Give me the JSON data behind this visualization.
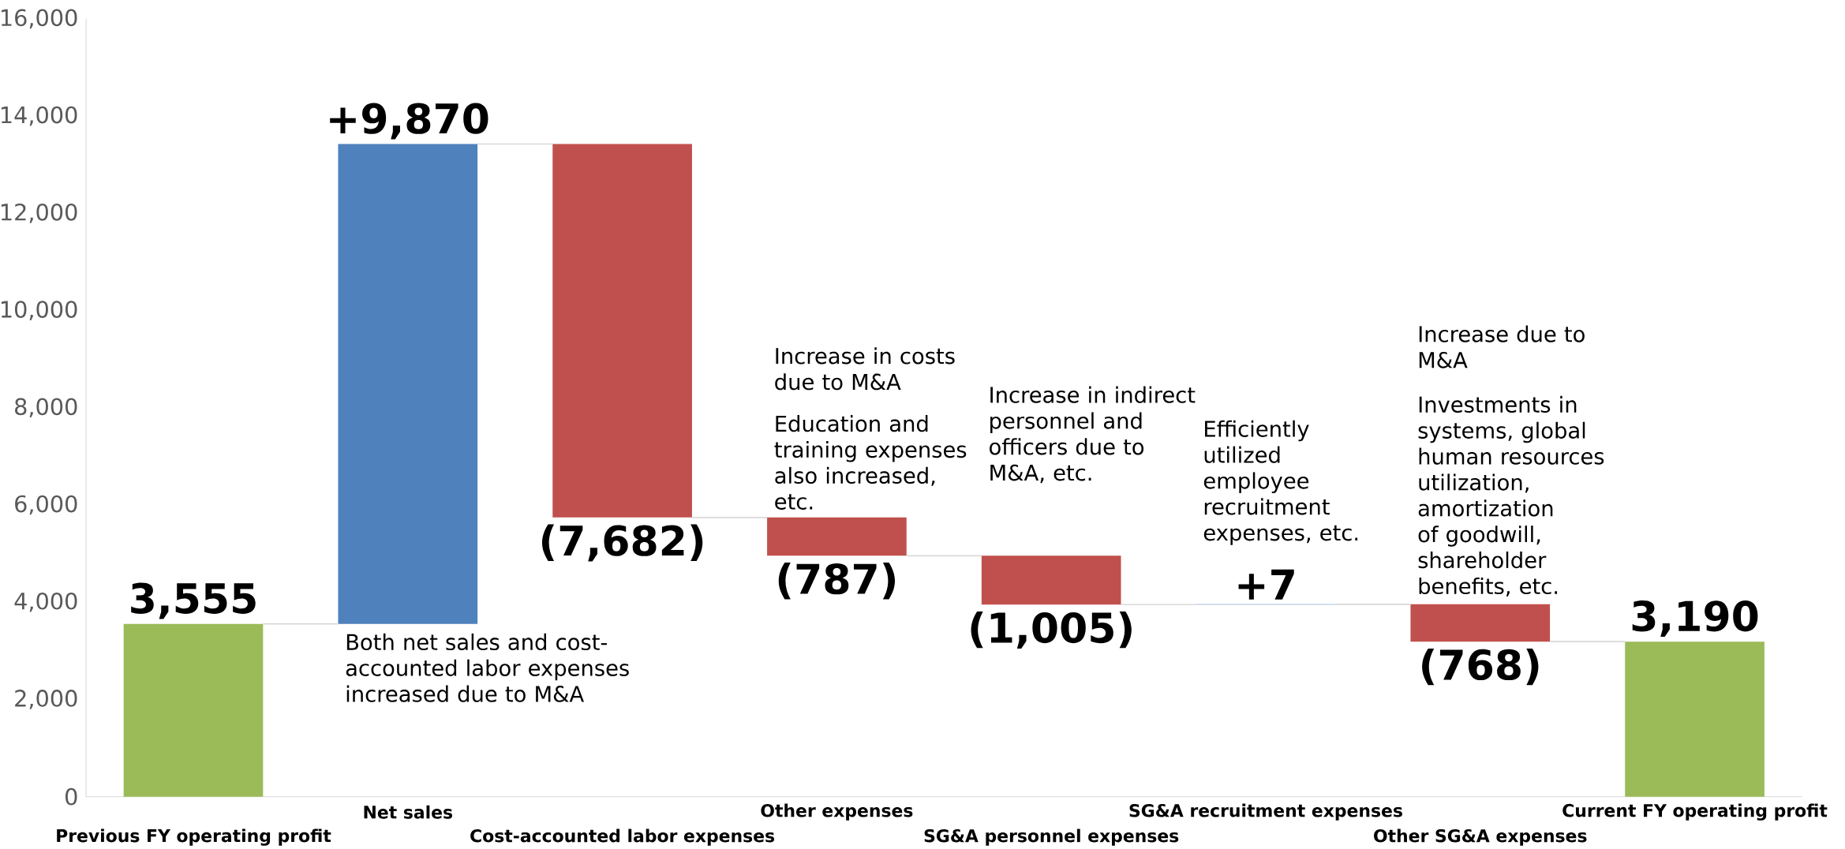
{
  "chart_data": {
    "type": "bar",
    "categories": [
      "Previous FY operating profit",
      "Net sales",
      "Cost-accounted labor expenses",
      "Other expenses",
      "SG&A personnel expenses",
      "SG&A recruitment expenses",
      "Other SG&A expenses",
      "Current FY operating profit"
    ],
    "values": [
      3555,
      9870,
      -7682,
      -787,
      -1005,
      7,
      -768,
      3190
    ],
    "base": [
      0,
      3555,
      13425,
      5743,
      4956,
      3951,
      3958,
      0
    ],
    "colors": [
      "#9bbb59",
      "#4f81bd",
      "#c0504d",
      "#c0504d",
      "#c0504d",
      "#4f81bd",
      "#c0504d",
      "#9bbb59"
    ],
    "value_labels": [
      "3,555",
      "+9,870",
      "(7,682)",
      "(787)",
      "(1,005)",
      "+7",
      "(768)",
      "3,190"
    ],
    "ylim": [
      0,
      16000
    ],
    "yticks": [
      {
        "value": 0,
        "label": "0"
      },
      {
        "value": 2000,
        "label": "2,000"
      },
      {
        "value": 4000,
        "label": "4,000"
      },
      {
        "value": 6000,
        "label": "6,000"
      },
      {
        "value": 8000,
        "label": "8,000"
      },
      {
        "value": 10000,
        "label": "10,000"
      },
      {
        "value": 12000,
        "label": "12,000"
      },
      {
        "value": 14000,
        "label": "14,000"
      },
      {
        "value": 16000,
        "label": "16,000"
      }
    ],
    "grid": false,
    "annotations": [
      {
        "text": "Both net sales and cost-accounted labor expenses increased due to M&A",
        "x": "Net sales",
        "y": 3555
      },
      "Increase in costs due to M&A",
      {
        "text": "Education and training expenses also increased, etc.",
        "x": "Other expenses",
        "y": 5743
      },
      "Increase in indirect personnel and officers due to M&A, etc.",
      "Efficiently utilized employee recruitment expenses, etc.",
      "Increase due to M&A",
      {
        "text": "Investments in systems, global human resources utilization, amortization of goodwill, shareholder benefits, etc.",
        "x": "Other SG&A expenses",
        "y": 3958
      }
    ]
  }
}
